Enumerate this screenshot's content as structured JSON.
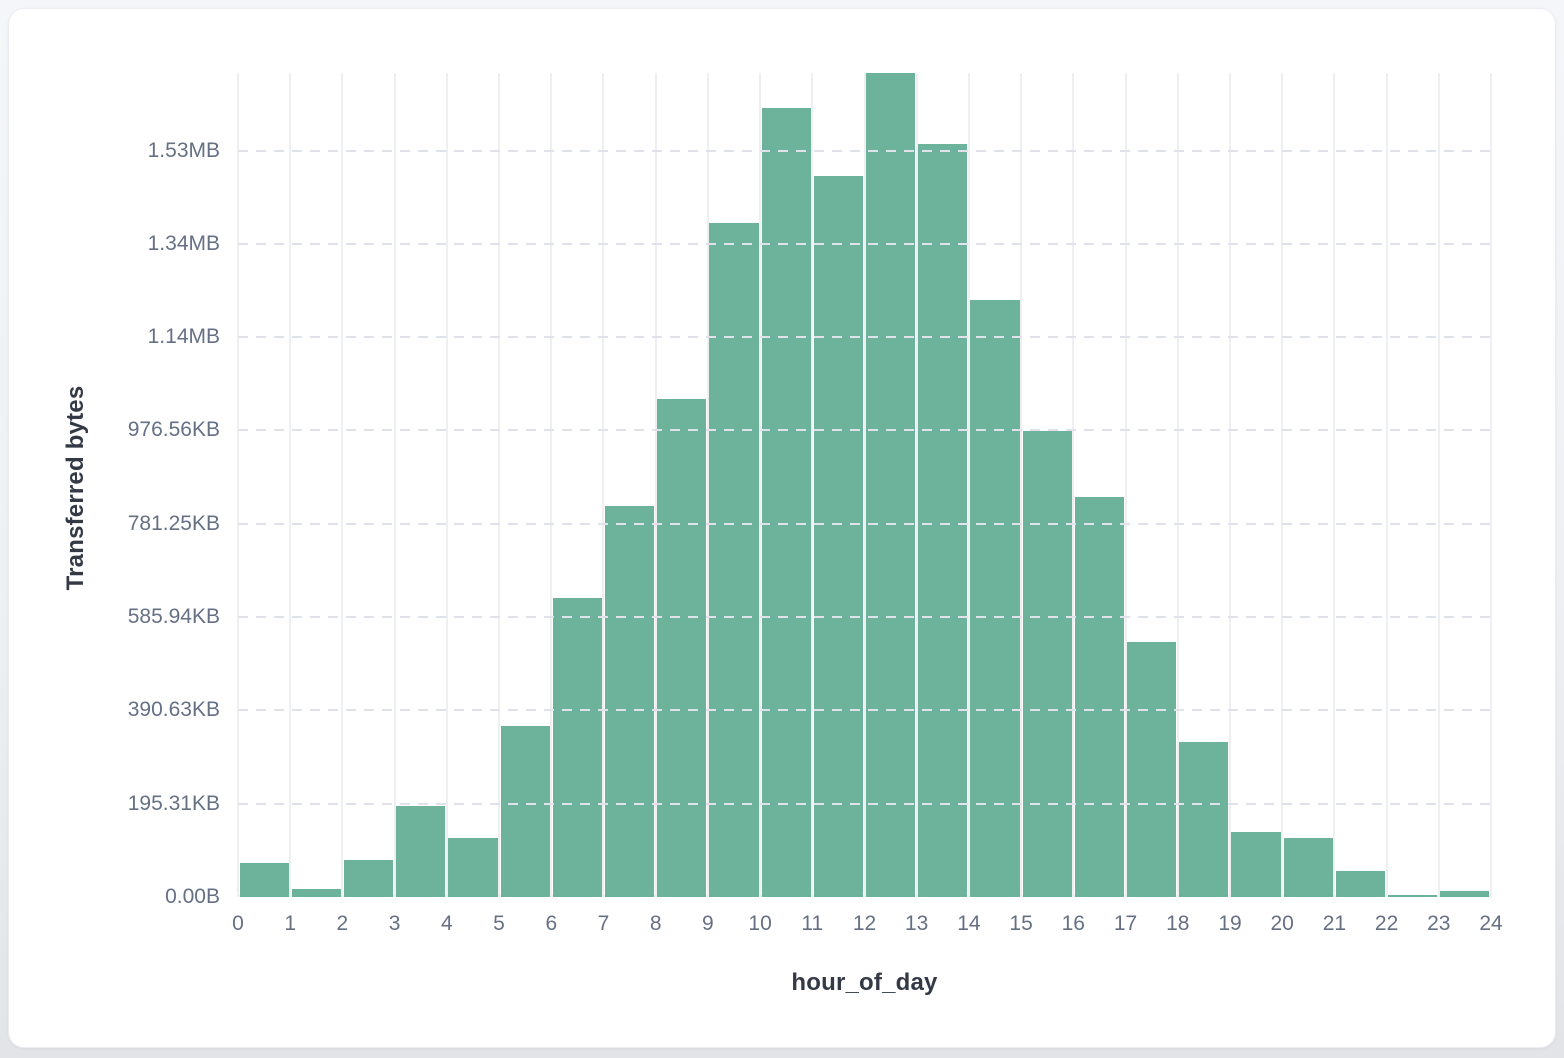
{
  "page": {
    "background_top": "#f5f6f9",
    "background_bottom": "#e2e4e7",
    "card_background": "#ffffff"
  },
  "chart_data": {
    "type": "bar",
    "title": "",
    "xlabel": "hour_of_day",
    "ylabel": "Transferred bytes",
    "categories": [
      0,
      1,
      2,
      3,
      4,
      5,
      6,
      7,
      8,
      9,
      10,
      11,
      12,
      13,
      14,
      15,
      16,
      17,
      18,
      19,
      20,
      21,
      22,
      23
    ],
    "values": [
      73600,
      16500,
      78800,
      194000,
      127300,
      367000,
      640000,
      838000,
      1068000,
      1444000,
      1691000,
      1545000,
      1766000,
      1614000,
      1279000,
      998000,
      858000,
      546000,
      333000,
      139000,
      125500,
      56500,
      4300,
      12800
    ],
    "values_unit": "bytes",
    "x_ticks": [
      0,
      1,
      2,
      3,
      4,
      5,
      6,
      7,
      8,
      9,
      10,
      11,
      12,
      13,
      14,
      15,
      16,
      17,
      18,
      19,
      20,
      21,
      22,
      23,
      24
    ],
    "y_ticks": [
      {
        "value": 0,
        "label": "0.00B"
      },
      {
        "value": 200000,
        "label": "195.31KB"
      },
      {
        "value": 400000,
        "label": "390.63KB"
      },
      {
        "value": 600000,
        "label": "585.94KB"
      },
      {
        "value": 800000,
        "label": "781.25KB"
      },
      {
        "value": 1000000,
        "label": "976.56KB"
      },
      {
        "value": 1200000,
        "label": "1.14MB"
      },
      {
        "value": 1400000,
        "label": "1.34MB"
      },
      {
        "value": 1600000,
        "label": "1.53MB"
      }
    ],
    "ylim": [
      0,
      1766000
    ],
    "bar_color": "#6db29b",
    "grid": true,
    "legend": false,
    "gridline_dashed_color": "#dfe3e9",
    "gridline_solid_color": "#edeff3",
    "tick_label_color": "#667085",
    "axis_title_color": "#333a46"
  }
}
